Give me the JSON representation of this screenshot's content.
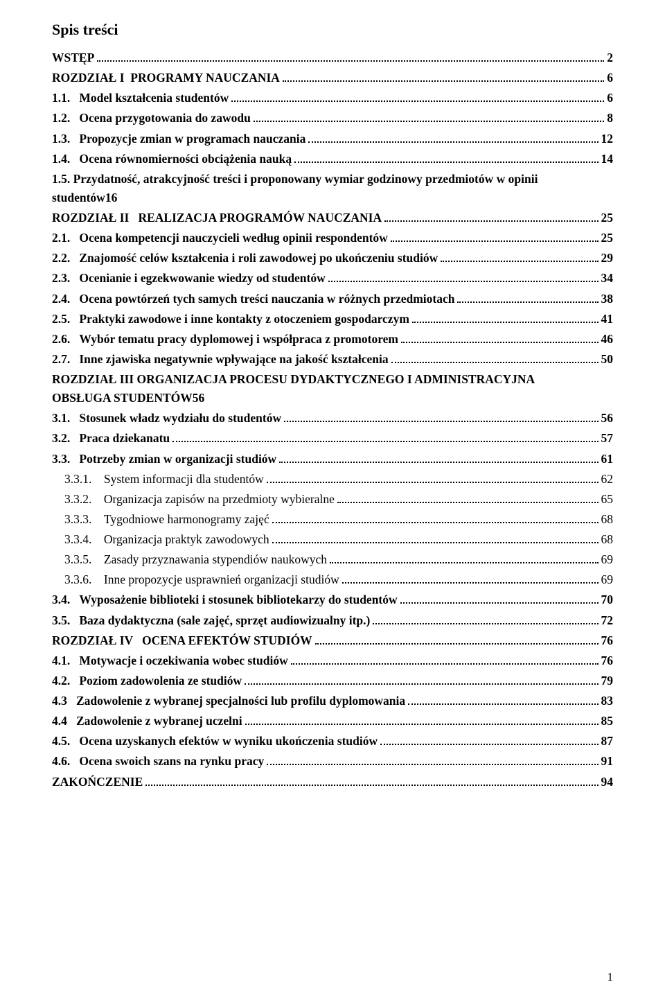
{
  "title": "Spis treści",
  "footer_page": "1",
  "entries": [
    {
      "num": "",
      "label": "WSTĘP",
      "page": "2",
      "level": 0,
      "bold": true
    },
    {
      "num": "",
      "label": "ROZDZIAŁ I  PROGRAMY NAUCZANIA",
      "page": "6",
      "level": 0,
      "bold": true
    },
    {
      "num": "1.1.",
      "label": "Model kształcenia studentów",
      "page": "6",
      "level": 1,
      "bold": true
    },
    {
      "num": "1.2.",
      "label": "Ocena przygotowania do zawodu",
      "page": "8",
      "level": 1,
      "bold": true
    },
    {
      "num": "1.3.",
      "label": "Propozycje zmian w programach nauczania",
      "page": "12",
      "level": 1,
      "bold": true
    },
    {
      "num": "1.4.",
      "label": "Ocena równomierności obciążenia nauką",
      "page": "14",
      "level": 1,
      "bold": true
    },
    {
      "num": "1.5.",
      "label_line1": "Przydatność, atrakcyjność treści i proponowany wymiar godzinowy przedmiotów w opinii",
      "label_line2": "studentów",
      "page": "16",
      "level": 1,
      "bold": true,
      "multiline": true
    },
    {
      "num": "",
      "label": "ROZDZIAŁ II   REALIZACJA PROGRAMÓW NAUCZANIA",
      "page": "25",
      "level": 0,
      "bold": true
    },
    {
      "num": "2.1.",
      "label": "Ocena kompetencji nauczycieli według opinii respondentów",
      "page": "25",
      "level": 1,
      "bold": true
    },
    {
      "num": "2.2.",
      "label": "Znajomość celów kształcenia i roli zawodowej po ukończeniu studiów",
      "page": "29",
      "level": 1,
      "bold": true
    },
    {
      "num": "2.3.",
      "label": "Ocenianie i egzekwowanie wiedzy od studentów",
      "page": "34",
      "level": 1,
      "bold": true
    },
    {
      "num": "2.4.",
      "label": "Ocena powtórzeń tych samych treści nauczania w różnych przedmiotach",
      "page": "38",
      "level": 1,
      "bold": true
    },
    {
      "num": "2.5.",
      "label": "Praktyki zawodowe i inne kontakty z otoczeniem gospodarczym",
      "page": "41",
      "level": 1,
      "bold": true
    },
    {
      "num": "2.6.",
      "label": "Wybór tematu pracy dyplomowej i współpraca z promotorem",
      "page": "46",
      "level": 1,
      "bold": true
    },
    {
      "num": "2.7.",
      "label": "Inne zjawiska negatywnie wpływające na jakość kształcenia",
      "page": "50",
      "level": 1,
      "bold": true
    },
    {
      "num": "",
      "label_line1": "ROZDZIAŁ III  ORGANIZACJA PROCESU DYDAKTYCZNEGO  I ADMINISTRACYJNA",
      "label_line2": "OBSŁUGA STUDENTÓW",
      "page": "56",
      "level": 0,
      "bold": true,
      "multiline": true
    },
    {
      "num": "3.1.",
      "label": "Stosunek władz wydziału do studentów",
      "page": "56",
      "level": 1,
      "bold": true
    },
    {
      "num": "3.2.",
      "label": "Praca dziekanatu",
      "page": "57",
      "level": 1,
      "bold": true
    },
    {
      "num": "3.3.",
      "label": "Potrzeby zmian w organizacji studiów",
      "page": "61",
      "level": 1,
      "bold": true
    },
    {
      "num": "3.3.1.",
      "label": "System informacji dla studentów",
      "page": "62",
      "level": 2,
      "bold": false
    },
    {
      "num": "3.3.2.",
      "label": "Organizacja zapisów na przedmioty wybieralne",
      "page": "65",
      "level": 2,
      "bold": false
    },
    {
      "num": "3.3.3.",
      "label": "Tygodniowe harmonogramy zajęć",
      "page": "68",
      "level": 2,
      "bold": false
    },
    {
      "num": "3.3.4.",
      "label": "Organizacja praktyk zawodowych",
      "page": "68",
      "level": 2,
      "bold": false
    },
    {
      "num": "3.3.5.",
      "label": "Zasady przyznawania stypendiów naukowych",
      "page": "69",
      "level": 2,
      "bold": false
    },
    {
      "num": "3.3.6.",
      "label": "Inne propozycje usprawnień organizacji studiów",
      "page": "69",
      "level": 2,
      "bold": false
    },
    {
      "num": "3.4.",
      "label": "Wyposażenie biblioteki i stosunek bibliotekarzy do studentów",
      "page": "70",
      "level": 1,
      "bold": true
    },
    {
      "num": "3.5.",
      "label": "Baza dydaktyczna (sale zajęć, sprzęt audiowizualny itp.)",
      "page": "72",
      "level": 1,
      "bold": true
    },
    {
      "num": "",
      "label": "ROZDZIAŁ IV   OCENA EFEKTÓW STUDIÓW",
      "page": "76",
      "level": 0,
      "bold": true
    },
    {
      "num": "4.1.",
      "label": "Motywacje i oczekiwania wobec studiów",
      "page": "76",
      "level": 1,
      "bold": true
    },
    {
      "num": "4.2.",
      "label": "Poziom zadowolenia ze studiów",
      "page": "79",
      "level": 1,
      "bold": true
    },
    {
      "num": "4.3",
      "label": "Zadowolenie z wybranej specjalności lub profilu dyplomowania",
      "page": "83",
      "level": 1,
      "bold": true
    },
    {
      "num": "4.4",
      "label": "Zadowolenie z wybranej uczelni",
      "page": "85",
      "level": 1,
      "bold": true
    },
    {
      "num": "4.5.",
      "label": "Ocena uzyskanych efektów w wyniku ukończenia studiów",
      "page": "87",
      "level": 1,
      "bold": true
    },
    {
      "num": "4.6.",
      "label": "Ocena swoich szans na rynku pracy",
      "page": "91",
      "level": 1,
      "bold": true
    },
    {
      "num": "",
      "label": "ZAKOŃCZENIE",
      "page": "94",
      "level": 0,
      "bold": true
    }
  ]
}
